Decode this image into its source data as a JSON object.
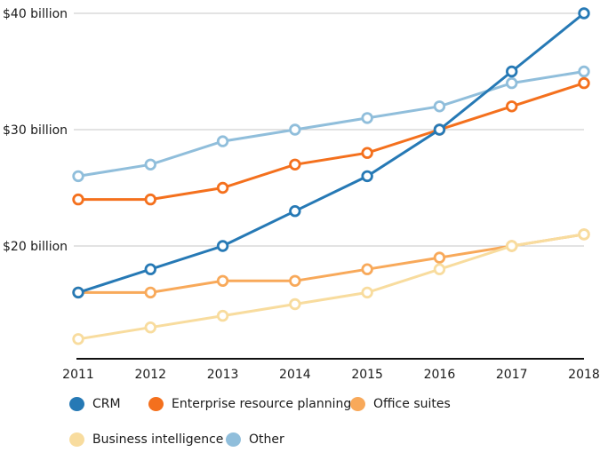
{
  "chart_data": {
    "type": "line",
    "title": "",
    "xlabel": "",
    "ylabel": "",
    "unit": "$ billion",
    "x": [
      "2011",
      "2012",
      "2013",
      "2014",
      "2015",
      "2016",
      "2017",
      "2018"
    ],
    "series": [
      {
        "name": "CRM",
        "color": "#2679b5",
        "z": 5,
        "values": [
          16,
          18,
          20,
          23,
          26,
          30,
          35,
          40
        ]
      },
      {
        "name": "Enterprise resource planning",
        "color": "#f4701d",
        "z": 4,
        "values": [
          24,
          24,
          25,
          27,
          28,
          30,
          32,
          34
        ]
      },
      {
        "name": "Office suites",
        "color": "#f8a95a",
        "z": 1,
        "values": [
          16,
          16,
          17,
          17,
          18,
          19,
          20,
          21
        ]
      },
      {
        "name": "Business intelligence",
        "color": "#f8dc9e",
        "z": 2,
        "values": [
          12,
          13,
          14,
          15,
          16,
          18,
          20,
          21
        ]
      },
      {
        "name": "Other",
        "color": "#90bedb",
        "z": 3,
        "values": [
          26,
          27,
          29,
          30,
          31,
          32,
          34,
          35
        ]
      }
    ],
    "yticks": [
      {
        "value": 20,
        "label": "$20 billion"
      },
      {
        "value": 30,
        "label": "$30 billion"
      },
      {
        "value": 40,
        "label": "$40 billion"
      }
    ],
    "ylim": [
      10.3,
      40
    ],
    "grid": true,
    "legend_position": "bottom"
  },
  "colors": {
    "grid": "#c7c7c7",
    "axis": "#111111",
    "text": "#1a1a1a",
    "marker_fill": "#ffffff",
    "background": "#ffffff"
  }
}
